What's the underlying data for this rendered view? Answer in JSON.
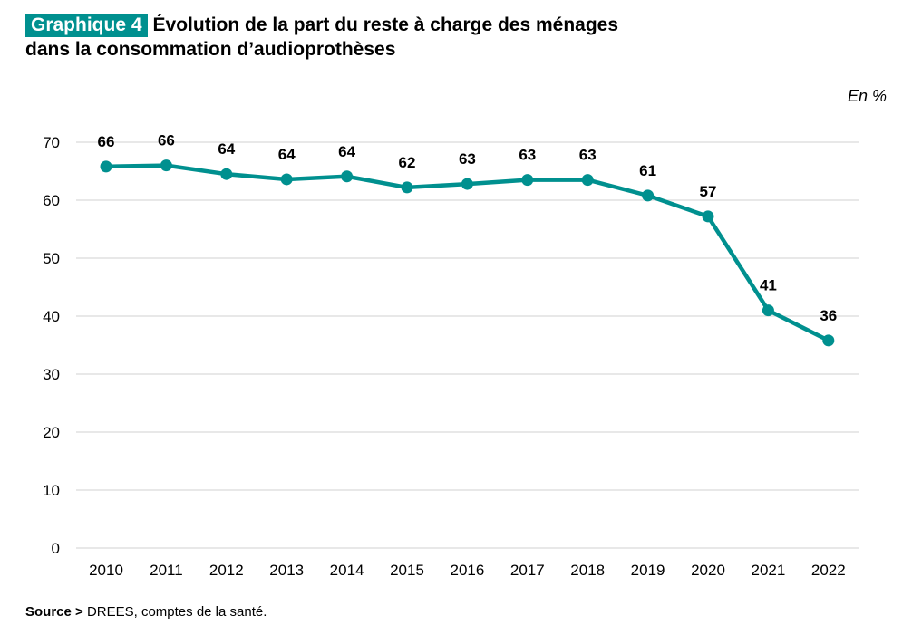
{
  "title": {
    "badge": "Graphique 4",
    "line1": "Évolution de la part du reste à charge des ménages",
    "line2": "dans la consommation d’audioprothèses"
  },
  "unit": "En %",
  "source": {
    "label": "Source >",
    "text": " DREES, comptes de la santé."
  },
  "colors": {
    "accent": "#00908f",
    "grid": "#d9d9d9"
  },
  "chart_data": {
    "type": "line",
    "title": "Évolution de la part du reste à charge des ménages dans la consommation d’audioprothèses",
    "ylabel": "En %",
    "ylim": [
      0,
      70
    ],
    "yticks": [
      0,
      10,
      20,
      30,
      40,
      50,
      60,
      70
    ],
    "grid": true,
    "categories": [
      "2010",
      "2011",
      "2012",
      "2013",
      "2014",
      "2015",
      "2016",
      "2017",
      "2018",
      "2019",
      "2020",
      "2021",
      "2022"
    ],
    "values": [
      65.8,
      66.0,
      64.5,
      63.6,
      64.1,
      62.2,
      62.8,
      63.5,
      63.5,
      60.8,
      57.2,
      41.0,
      35.8
    ],
    "data_labels": [
      "66",
      "66",
      "64",
      "64",
      "64",
      "62",
      "63",
      "63",
      "63",
      "61",
      "57",
      "41",
      "36"
    ]
  }
}
